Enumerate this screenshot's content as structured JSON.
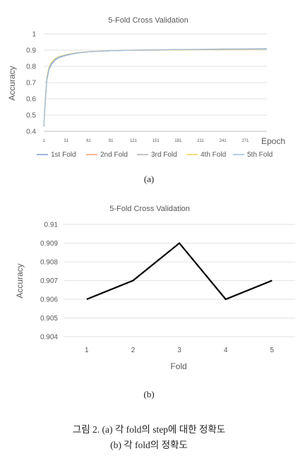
{
  "chart_data": [
    {
      "type": "line",
      "title": "5-Fold Cross Validation",
      "xlabel": "Epoch",
      "ylabel": "Accuracy",
      "xlim": [
        1,
        300
      ],
      "ylim": [
        0.4,
        1
      ],
      "x_ticks": [
        "1",
        "31",
        "61",
        "91",
        "121",
        "151",
        "181",
        "211",
        "241",
        "271"
      ],
      "y_ticks": [
        "0.4",
        "0.5",
        "0.6",
        "0.7",
        "0.8",
        "0.9",
        "1"
      ],
      "grid": true,
      "legend": "bottom",
      "x": [
        1,
        3,
        5,
        8,
        11,
        16,
        21,
        31,
        46,
        61,
        91,
        121,
        151,
        181,
        211,
        241,
        271,
        300
      ],
      "series": [
        {
          "name": "1st Fold",
          "color": "#7f9fcf",
          "values": [
            0.43,
            0.58,
            0.71,
            0.78,
            0.81,
            0.838,
            0.853,
            0.868,
            0.882,
            0.889,
            0.896,
            0.899,
            0.9,
            0.902,
            0.903,
            0.904,
            0.905,
            0.906
          ]
        },
        {
          "name": "2nd Fold",
          "color": "#f0a070",
          "values": [
            0.43,
            0.59,
            0.72,
            0.79,
            0.818,
            0.845,
            0.858,
            0.872,
            0.884,
            0.89,
            0.897,
            0.899,
            0.901,
            0.903,
            0.904,
            0.905,
            0.906,
            0.907
          ]
        },
        {
          "name": "3rd Fold",
          "color": "#b0b0b0",
          "values": [
            0.43,
            0.585,
            0.715,
            0.785,
            0.815,
            0.842,
            0.856,
            0.87,
            0.883,
            0.89,
            0.897,
            0.9,
            0.902,
            0.904,
            0.905,
            0.907,
            0.908,
            0.909
          ]
        },
        {
          "name": "4th Fold",
          "color": "#f5cf50",
          "values": [
            0.43,
            0.6,
            0.73,
            0.795,
            0.822,
            0.848,
            0.86,
            0.873,
            0.885,
            0.891,
            0.897,
            0.899,
            0.9,
            0.901,
            0.902,
            0.903,
            0.904,
            0.906
          ]
        },
        {
          "name": "5th Fold",
          "color": "#a0bde0",
          "values": [
            0.43,
            0.59,
            0.72,
            0.788,
            0.816,
            0.843,
            0.857,
            0.871,
            0.883,
            0.89,
            0.896,
            0.899,
            0.901,
            0.903,
            0.904,
            0.905,
            0.906,
            0.907
          ]
        }
      ]
    },
    {
      "type": "line",
      "title": "5-Fold Cross Validation",
      "xlabel": "Fold",
      "ylabel": "Accuracy",
      "categories": [
        "1",
        "2",
        "3",
        "4",
        "5"
      ],
      "values": [
        0.906,
        0.907,
        0.909,
        0.906,
        0.907
      ],
      "ylim": [
        0.904,
        0.91
      ],
      "y_ticks": [
        "0.904",
        "0.905",
        "0.906",
        "0.907",
        "0.908",
        "0.909",
        "0.91"
      ],
      "grid": true,
      "color": "#000000"
    }
  ],
  "subcaption_a": "(a)",
  "subcaption_b": "(b)",
  "caption_line1": "그림 2. (a) 각 fold의 step에 대한 정확도",
  "caption_line2": "(b) 각 fold의 정확도"
}
